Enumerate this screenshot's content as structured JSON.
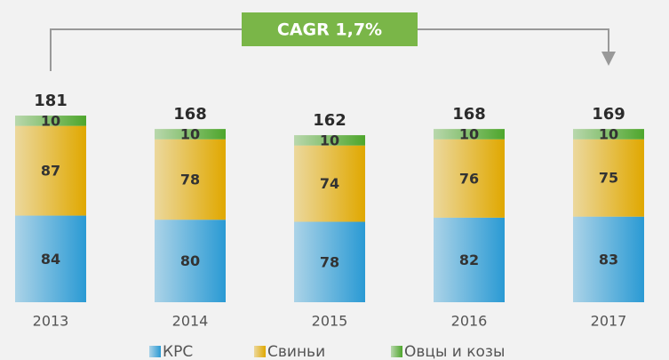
{
  "chart_data": {
    "type": "stacked-bar",
    "annotation": "CAGR 1,7%",
    "categories": [
      "2013",
      "2014",
      "2015",
      "2016",
      "2017"
    ],
    "totals": [
      181,
      168,
      162,
      168,
      169
    ],
    "series": [
      {
        "name": "КРС",
        "color": "#2a9ad4",
        "values": [
          84,
          80,
          78,
          82,
          83
        ]
      },
      {
        "name": "Свиньи",
        "color": "#e0a800",
        "values": [
          87,
          78,
          74,
          76,
          75
        ]
      },
      {
        "name": "Овцы и козы",
        "color": "#4ea62c",
        "values": [
          10,
          10,
          10,
          10,
          10
        ]
      }
    ]
  }
}
